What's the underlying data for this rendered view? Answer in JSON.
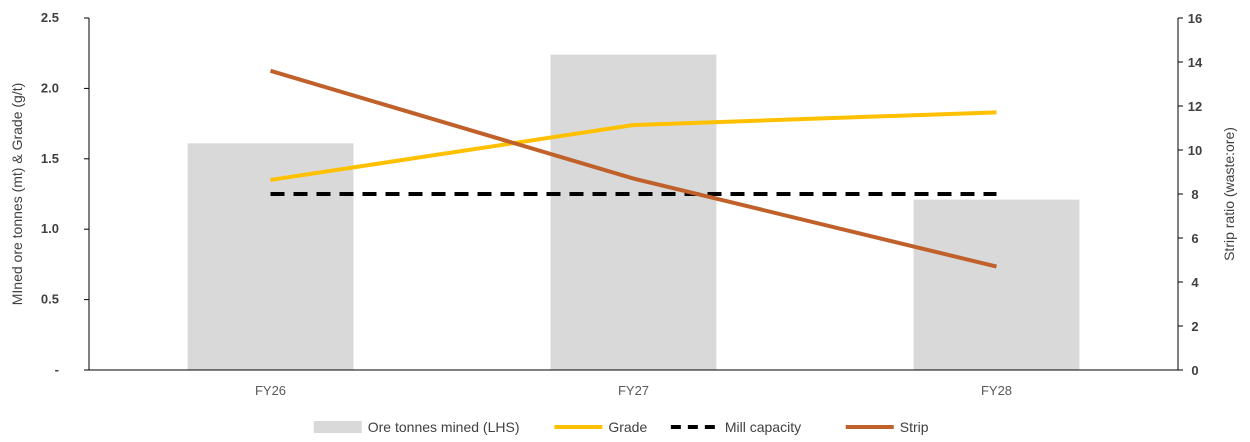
{
  "chart_data": {
    "type": "bar",
    "categories": [
      "FY26",
      "FY27",
      "FY28"
    ],
    "series": [
      {
        "name": "Ore tonnes mined (LHS)",
        "type": "bar",
        "axis": "left",
        "values": [
          1.61,
          2.24,
          1.21
        ],
        "color": "#d9d9d9"
      },
      {
        "name": "Grade",
        "type": "line",
        "axis": "left",
        "values": [
          1.35,
          1.74,
          1.83
        ],
        "color": "#ffc000"
      },
      {
        "name": "Mill capacity",
        "type": "line",
        "axis": "left",
        "dash": "dashed",
        "values": [
          1.25,
          1.25,
          1.25
        ],
        "color": "#000000"
      },
      {
        "name": "Strip",
        "type": "line",
        "axis": "right",
        "values": [
          13.6,
          8.7,
          4.7
        ],
        "color": "#c0612b"
      }
    ],
    "y_left": {
      "label": "MIned ore tonnes (mt) & Grade (g/t)",
      "lim": [
        0,
        2.5
      ],
      "ticks": [
        0,
        0.5,
        1.0,
        1.5,
        2.0,
        2.5
      ],
      "tick_labels": [
        "-",
        "0.5",
        "1.0",
        "1.5",
        "2.0",
        "2.5"
      ]
    },
    "y_right": {
      "label": "Strip ratio (waste:ore)",
      "lim": [
        0,
        16
      ],
      "ticks": [
        0,
        2,
        4,
        6,
        8,
        10,
        12,
        14,
        16
      ],
      "tick_labels": [
        "0",
        "2",
        "4",
        "6",
        "8",
        "10",
        "12",
        "14",
        "16"
      ]
    },
    "grid": false,
    "legend": "bottom"
  }
}
